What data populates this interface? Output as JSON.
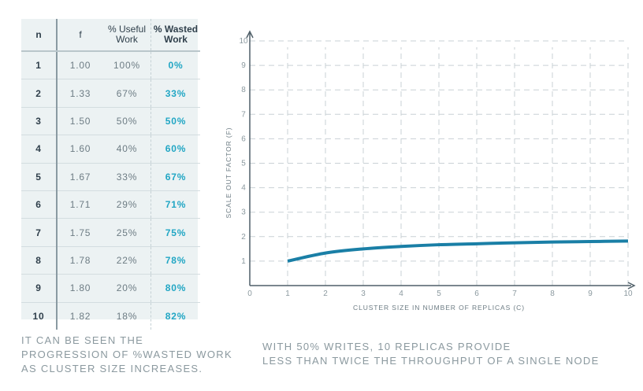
{
  "table": {
    "headers": {
      "n": "n",
      "f": "f",
      "useful": "% Useful\nWork",
      "wasted": "% Wasted\nWork"
    },
    "rows": [
      {
        "n": "1",
        "f": "1.00",
        "useful": "100%",
        "wasted": "0%"
      },
      {
        "n": "2",
        "f": "1.33",
        "useful": "67%",
        "wasted": "33%"
      },
      {
        "n": "3",
        "f": "1.50",
        "useful": "50%",
        "wasted": "50%"
      },
      {
        "n": "4",
        "f": "1.60",
        "useful": "40%",
        "wasted": "60%"
      },
      {
        "n": "5",
        "f": "1.67",
        "useful": "33%",
        "wasted": "67%"
      },
      {
        "n": "6",
        "f": "1.71",
        "useful": "29%",
        "wasted": "71%"
      },
      {
        "n": "7",
        "f": "1.75",
        "useful": "25%",
        "wasted": "75%"
      },
      {
        "n": "8",
        "f": "1.78",
        "useful": "22%",
        "wasted": "78%"
      },
      {
        "n": "9",
        "f": "1.80",
        "useful": "20%",
        "wasted": "80%"
      },
      {
        "n": "10",
        "f": "1.82",
        "useful": "18%",
        "wasted": "82%"
      }
    ]
  },
  "captions": {
    "left": "IT CAN BE SEEN THE\nPROGRESSION OF %WASTED WORK\nAS CLUSTER SIZE INCREASES.",
    "right": "WITH 50% WRITES, 10 REPLICAS PROVIDE\nLESS THAN TWICE THE THROUGHPUT OF A SINGLE NODE"
  },
  "colors": {
    "line": "#1a7fa6",
    "grid": "#c9d1d5",
    "axis": "#4f5f68",
    "accent": "#21a6c4"
  },
  "chart_data": {
    "type": "line",
    "title": "",
    "xlabel": "CLUSTER SIZE IN NUMBER OF REPLICAS (C)",
    "ylabel": "SCALE OUT FACTOR (F)",
    "xlim": [
      0,
      10
    ],
    "ylim": [
      0,
      10
    ],
    "x_ticks": [
      0,
      1,
      2,
      3,
      4,
      5,
      6,
      7,
      8,
      9,
      10
    ],
    "y_ticks": [
      1,
      2,
      3,
      4,
      5,
      6,
      7,
      8,
      9,
      10
    ],
    "grid": true,
    "series": [
      {
        "x": [
          1,
          2,
          3,
          4,
          5,
          6,
          7,
          8,
          9,
          10
        ],
        "y": [
          1.0,
          1.33,
          1.5,
          1.6,
          1.67,
          1.71,
          1.75,
          1.78,
          1.8,
          1.82
        ]
      }
    ]
  }
}
